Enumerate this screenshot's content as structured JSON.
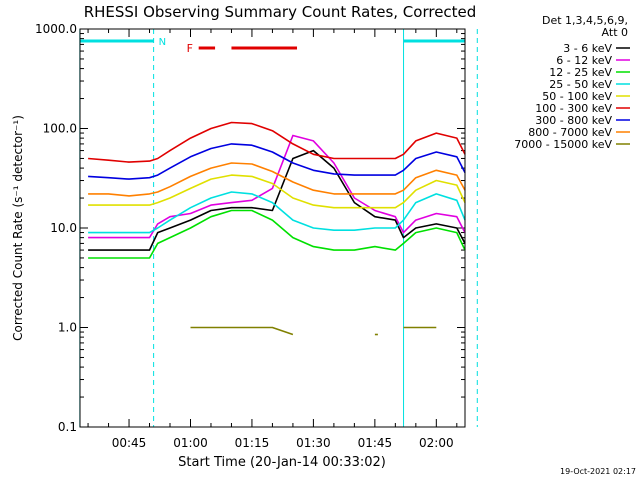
{
  "chart_data": {
    "type": "line",
    "title": "RHESSI Observing Summary Count Rates, Corrected",
    "xlabel": "Start Time (20-Jan-14 00:33:02)",
    "ylabel": "Corrected Count Rate (s⁻¹ detector⁻¹)",
    "y_scale": "log",
    "ylim": [
      0.1,
      1000
    ],
    "xlim": [
      "00:33:02",
      "02:07:00"
    ],
    "x_ticks": [
      "00:45",
      "01:00",
      "01:15",
      "01:30",
      "01:45",
      "02:00"
    ],
    "y_ticks": [
      "0.1",
      "1.0",
      "10.0",
      "100.0",
      "1000.0"
    ],
    "legend_header": [
      "Det 1,3,4,5,6,9,",
      "Att 0"
    ],
    "legend_position": "top-right",
    "timestamp": "19-Oct-2021 02:17",
    "flag_labels": {
      "night": "N",
      "flare": "F"
    },
    "night_intervals": [
      [
        "00:33",
        "00:51"
      ],
      [
        "01:52",
        "02:10"
      ]
    ],
    "flare_bars": [
      [
        "01:02",
        "01:06"
      ],
      [
        "01:10",
        "01:26"
      ]
    ],
    "x": [
      "00:35",
      "00:40",
      "00:45",
      "00:50",
      "00:52",
      "00:55",
      "01:00",
      "01:05",
      "01:10",
      "01:15",
      "01:20",
      "01:25",
      "01:30",
      "01:35",
      "01:40",
      "01:45",
      "01:50",
      "01:52",
      "01:55",
      "02:00",
      "02:05",
      "02:07"
    ],
    "series": [
      {
        "name": "3 - 6 keV",
        "color": "#000000",
        "values": [
          6,
          6,
          6,
          6,
          9,
          10,
          12,
          15,
          16,
          16,
          15,
          50,
          60,
          40,
          18,
          13,
          12,
          8,
          10,
          11,
          10,
          7
        ]
      },
      {
        "name": "6 - 12 keV",
        "color": "#e000e0",
        "values": [
          8,
          8,
          8,
          8,
          11,
          13,
          14,
          17,
          18,
          19,
          25,
          85,
          75,
          45,
          20,
          15,
          13,
          9,
          12,
          14,
          13,
          9
        ]
      },
      {
        "name": "12 - 25 keV",
        "color": "#00e000",
        "values": [
          5,
          5,
          5,
          5,
          7,
          8,
          10,
          13,
          15,
          15,
          12,
          8,
          6.5,
          6,
          6,
          6.5,
          6,
          7,
          9,
          10,
          9,
          6
        ]
      },
      {
        "name": "25 - 50 keV",
        "color": "#00e0e0",
        "values": [
          9,
          9,
          9,
          9,
          10,
          12,
          16,
          20,
          23,
          22,
          18,
          12,
          10,
          9.5,
          9.5,
          10,
          10,
          12,
          18,
          22,
          19,
          12
        ]
      },
      {
        "name": "50 - 100 keV",
        "color": "#e0e000",
        "values": [
          17,
          17,
          17,
          17,
          18,
          20,
          25,
          31,
          34,
          33,
          28,
          20,
          17,
          16,
          16,
          16,
          16,
          18,
          24,
          30,
          27,
          18
        ]
      },
      {
        "name": "100 - 300 keV",
        "color": "#e00000",
        "values": [
          50,
          48,
          46,
          47,
          50,
          60,
          80,
          100,
          115,
          112,
          95,
          70,
          55,
          50,
          50,
          50,
          50,
          55,
          75,
          90,
          80,
          55
        ]
      },
      {
        "name": "300 - 800 keV",
        "color": "#0000e0",
        "values": [
          33,
          32,
          31,
          32,
          34,
          40,
          52,
          63,
          70,
          68,
          58,
          45,
          38,
          35,
          34,
          34,
          34,
          38,
          50,
          58,
          52,
          36
        ]
      },
      {
        "name": "800 - 7000 keV",
        "color": "#ff8000",
        "values": [
          22,
          22,
          21,
          22,
          23,
          26,
          33,
          40,
          45,
          44,
          37,
          29,
          24,
          22,
          22,
          22,
          22,
          24,
          32,
          38,
          34,
          24
        ]
      },
      {
        "name": "7000 - 15000 keV",
        "color": "#808000",
        "values": [
          null,
          null,
          null,
          null,
          null,
          null,
          1.0,
          1.0,
          1.0,
          1.0,
          1.0,
          0.85,
          null,
          null,
          null,
          0.85,
          null,
          1.0,
          1.0,
          1.0,
          null,
          null
        ]
      }
    ]
  }
}
